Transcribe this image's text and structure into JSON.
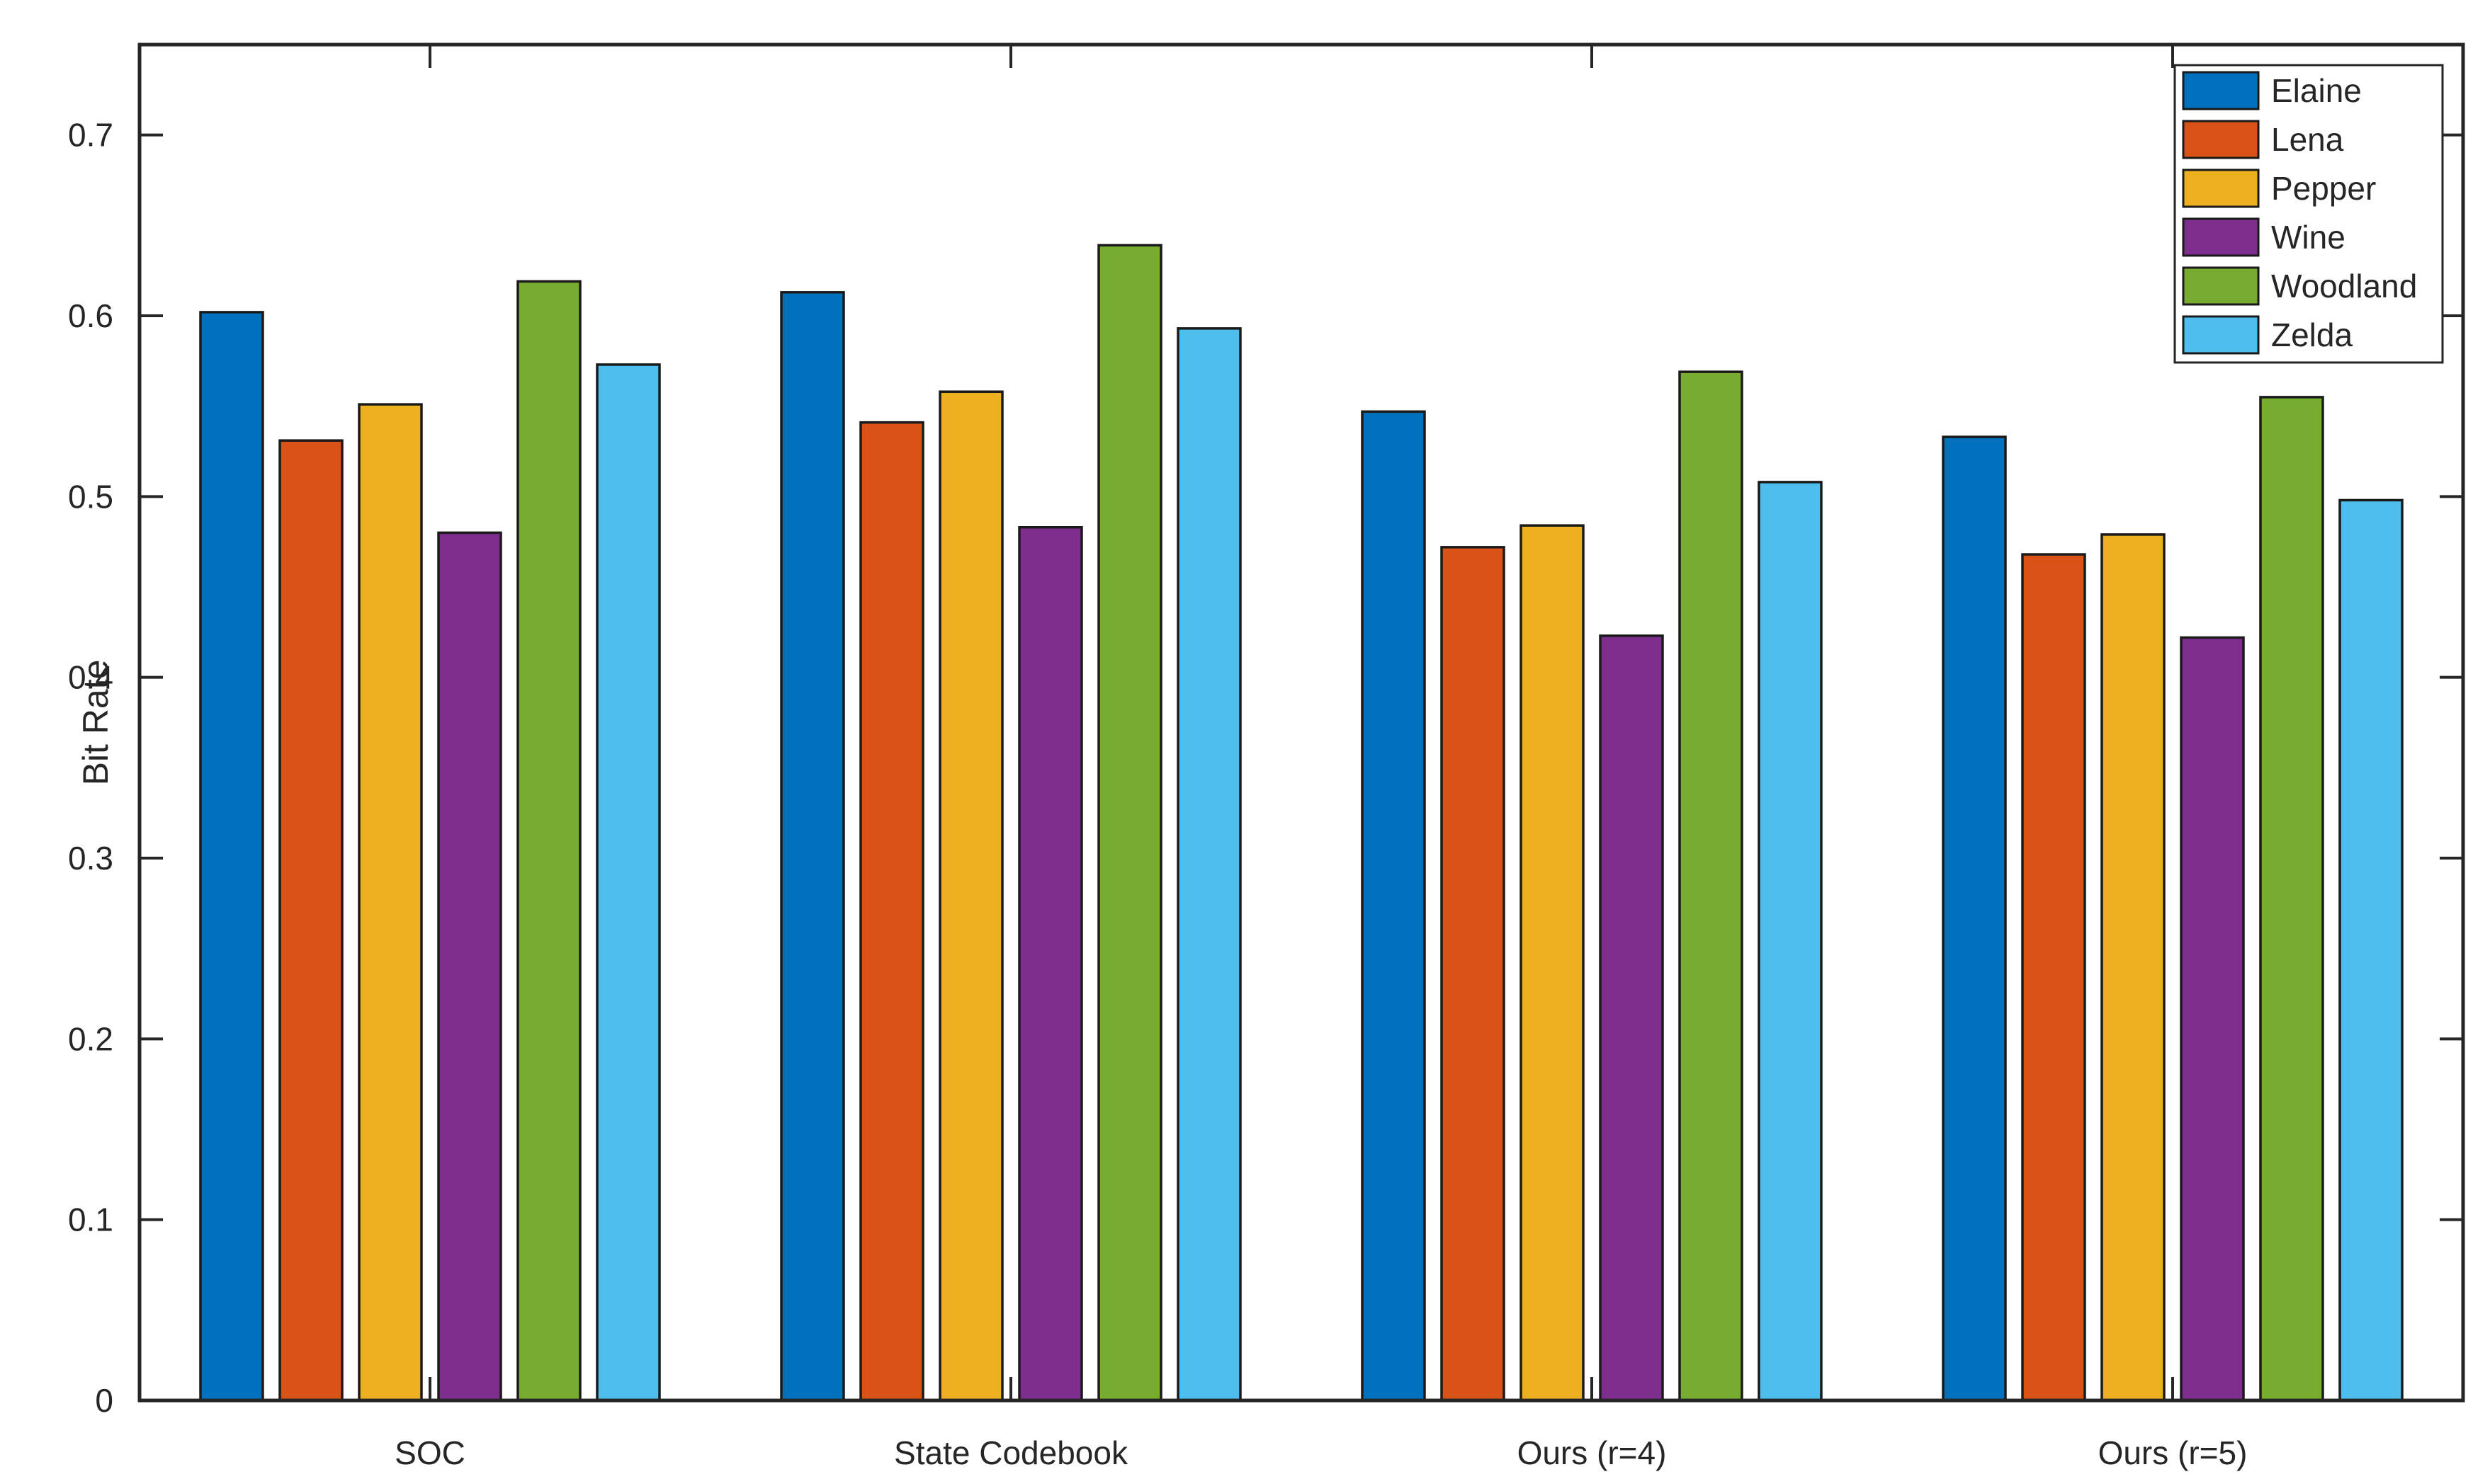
{
  "figure": {
    "background": "#ffffff",
    "axis_color": "#262626",
    "bar_edge_color": "#1a1a1a"
  },
  "chart_data": {
    "type": "bar",
    "title": "",
    "xlabel": "",
    "ylabel": "Bit Rate",
    "categories": [
      "SOC",
      "State Codebook",
      "Ours (r=4)",
      "Ours (r=5)"
    ],
    "series": [
      {
        "name": "Elaine",
        "color": "#0072BD",
        "values": [
          0.602,
          0.613,
          0.547,
          0.533
        ]
      },
      {
        "name": "Lena",
        "color": "#D95319",
        "values": [
          0.531,
          0.541,
          0.472,
          0.468
        ]
      },
      {
        "name": "Pepper",
        "color": "#EDB120",
        "values": [
          0.551,
          0.558,
          0.484,
          0.479
        ]
      },
      {
        "name": "Wine",
        "color": "#7E2F8E",
        "values": [
          0.48,
          0.483,
          0.423,
          0.422
        ]
      },
      {
        "name": "Woodland",
        "color": "#77AC30",
        "values": [
          0.619,
          0.639,
          0.569,
          0.555
        ]
      },
      {
        "name": "Zelda",
        "color": "#4DBEEE",
        "values": [
          0.573,
          0.593,
          0.508,
          0.498
        ]
      }
    ],
    "ylim": [
      0,
      0.75
    ],
    "yticks": [
      "0",
      "0.1",
      "0.2",
      "0.3",
      "0.4",
      "0.5",
      "0.6",
      "0.7"
    ],
    "grid": false,
    "legend_position": "top-right"
  }
}
